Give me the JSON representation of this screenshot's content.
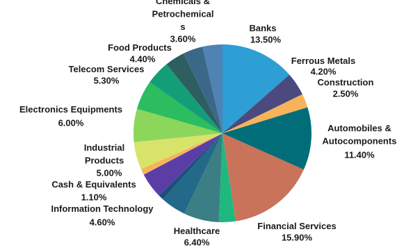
{
  "chart_data": {
    "type": "pie",
    "categories": [
      "Banks",
      "Ferrous Metals",
      "Construction",
      "Automobiles &\nAutocomponents",
      "Financial Services",
      null,
      "Healthcare",
      "Information Technology",
      null,
      null,
      "Cash & Equivalents",
      "Industrial\nProducts",
      "Electronics Equipments",
      "Telecom Services",
      "Food Products",
      null,
      null,
      "Chemicals &\nPetrochemical\ns"
    ],
    "values": [
      13.5,
      4.2,
      2.5,
      11.4,
      15.9,
      3.0,
      6.4,
      4.6,
      1.0,
      4.6,
      1.1,
      5.0,
      6.0,
      5.3,
      4.4,
      3.6,
      3.6,
      3.6
    ],
    "value_labels": [
      "13.50%",
      "4.20%",
      "2.50%",
      "11.40%",
      "15.90%",
      null,
      "6.40%",
      "4.60%",
      null,
      null,
      "1.10%",
      "5.00%",
      "6.00%",
      "5.30%",
      "4.40%",
      null,
      null,
      "3.60%"
    ],
    "colors": [
      "#2e9fd4",
      "#4a4a7e",
      "#f6b35a",
      "#006d78",
      "#c8735a",
      "#1fb87e",
      "#3b7f84",
      "#236a8a",
      "#1d4f7a",
      "#5a3ea6",
      "#f6b35a",
      "#d8e36a",
      "#8dd65c",
      "#2bbd5f",
      "#149e78",
      "#2e5e60",
      "#3b6888",
      "#4f83b4"
    ]
  }
}
